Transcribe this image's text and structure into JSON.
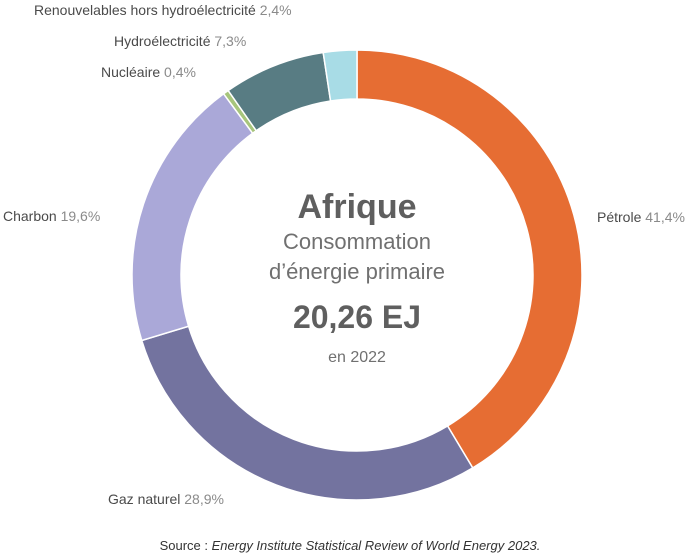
{
  "chart_data": {
    "type": "pie",
    "title": "Afrique",
    "subtitle_lines": [
      "Consommation",
      "d’énergie primaire"
    ],
    "total_label": "20,26 EJ",
    "year_label": "en 2022",
    "categories": [
      "Pétrole",
      "Gaz naturel",
      "Charbon",
      "Nucléaire",
      "Hydroélectricité",
      "Renouvelables hors hydroélectricité"
    ],
    "values": [
      41.4,
      28.9,
      19.6,
      0.4,
      7.3,
      2.4
    ],
    "value_labels": [
      "41,4%",
      "28,9%",
      "19,6%",
      "0,4%",
      "7,3%",
      "2,4%"
    ],
    "colors": [
      "#e66d33",
      "#73739f",
      "#aaa8d8",
      "#a7c57c",
      "#587c83",
      "#a8dce6"
    ]
  },
  "source": {
    "prefix": "Source : ",
    "text": "Energy Institute Statistical Review of World Energy 2023."
  }
}
